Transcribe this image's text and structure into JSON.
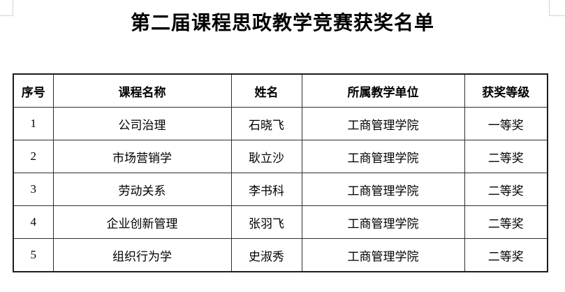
{
  "page": {
    "title": "第二届课程思政教学竞赛获奖名单",
    "background_color": "#ffffff",
    "crop_mark_color": "#d4d4d4",
    "text_color": "#000000"
  },
  "table": {
    "border_color": "#1c1c1c",
    "headers": [
      "序号",
      "课程名称",
      "姓名",
      "所属教学单位",
      "获奖等级"
    ],
    "rows": [
      [
        "1",
        "公司治理",
        "石晓飞",
        "工商管理学院",
        "一等奖"
      ],
      [
        "2",
        "市场营销学",
        "耿立沙",
        "工商管理学院",
        "二等奖"
      ],
      [
        "3",
        "劳动关系",
        "李书科",
        "工商管理学院",
        "二等奖"
      ],
      [
        "4",
        "企业创新管理",
        "张羽飞",
        "工商管理学院",
        "二等奖"
      ],
      [
        "5",
        "组织行为学",
        "史淑秀",
        "工商管理学院",
        "二等奖"
      ]
    ]
  }
}
